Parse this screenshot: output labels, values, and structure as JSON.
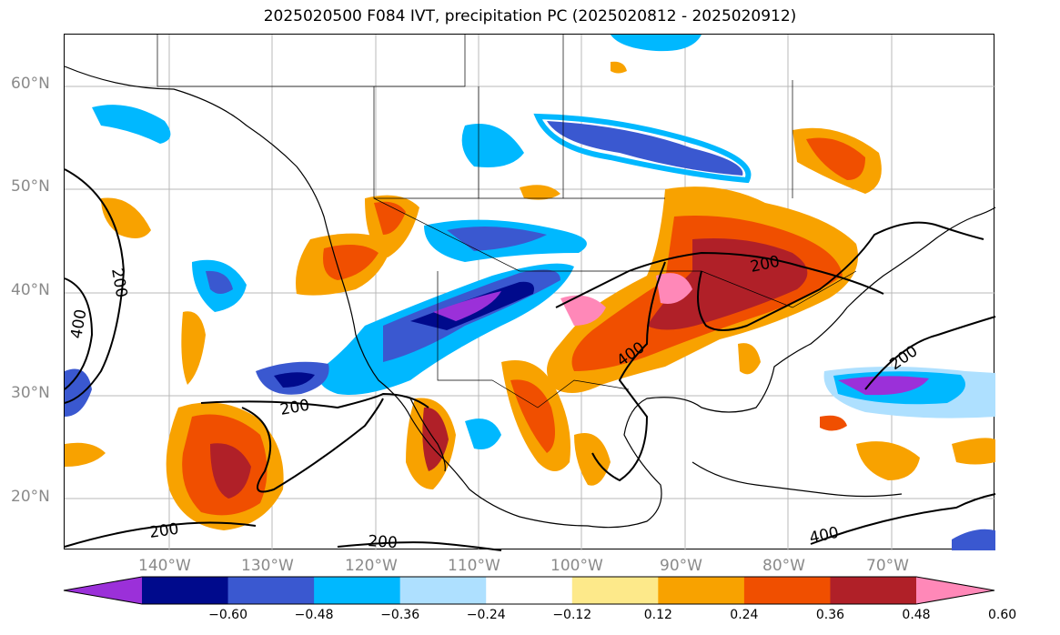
{
  "title": "2025020500 F084 IVT, precipitation PC (2025020812 - 2025020912)",
  "lat_labels": [
    "60°N",
    "50°N",
    "40°N",
    "30°N",
    "20°N"
  ],
  "lon_labels": [
    "140°W",
    "130°W",
    "120°W",
    "110°W",
    "100°W",
    "90°W",
    "80°W",
    "70°W"
  ],
  "contour_labels": [
    "200",
    "400",
    "200",
    "200",
    "200",
    "400",
    "200",
    "200",
    "400"
  ],
  "colorbar": {
    "ticks": [
      "−0.60",
      "−0.48",
      "−0.36",
      "−0.24",
      "−0.12",
      "0.12",
      "0.24",
      "0.36",
      "0.48",
      "0.60"
    ],
    "colors": [
      "#9b30d9",
      "#000a8c",
      "#3a58d0",
      "#00b8ff",
      "#aee0ff",
      "#ffffff",
      "#fde98a",
      "#f8a200",
      "#f04f00",
      "#b02028",
      "#ff88b8"
    ]
  }
}
